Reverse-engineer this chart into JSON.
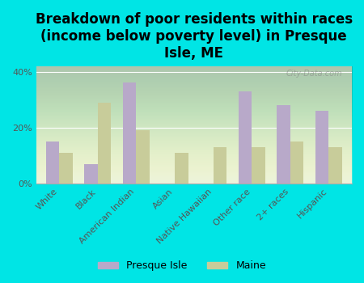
{
  "title": "Breakdown of poor residents within races\n(income below poverty level) in Presque\nIsle, ME",
  "categories": [
    "White",
    "Black",
    "American Indian",
    "Asian",
    "Native Hawaiian",
    "Other race",
    "2+ races",
    "Hispanic"
  ],
  "presque_isle": [
    15,
    7,
    36,
    0,
    0,
    33,
    28,
    26
  ],
  "maine": [
    11,
    29,
    19,
    11,
    13,
    13,
    15,
    13
  ],
  "bar_color_pi": "#b8a9c9",
  "bar_color_maine": "#c8cc9a",
  "background_color": "#00e5e5",
  "plot_bg": "#e8f0d8",
  "ylim": [
    0,
    42
  ],
  "yticks": [
    0,
    20,
    40
  ],
  "ytick_labels": [
    "0%",
    "20%",
    "40%"
  ],
  "watermark": "City-Data.com",
  "legend_pi": "Presque Isle",
  "legend_maine": "Maine",
  "title_fontsize": 12,
  "tick_fontsize": 8
}
